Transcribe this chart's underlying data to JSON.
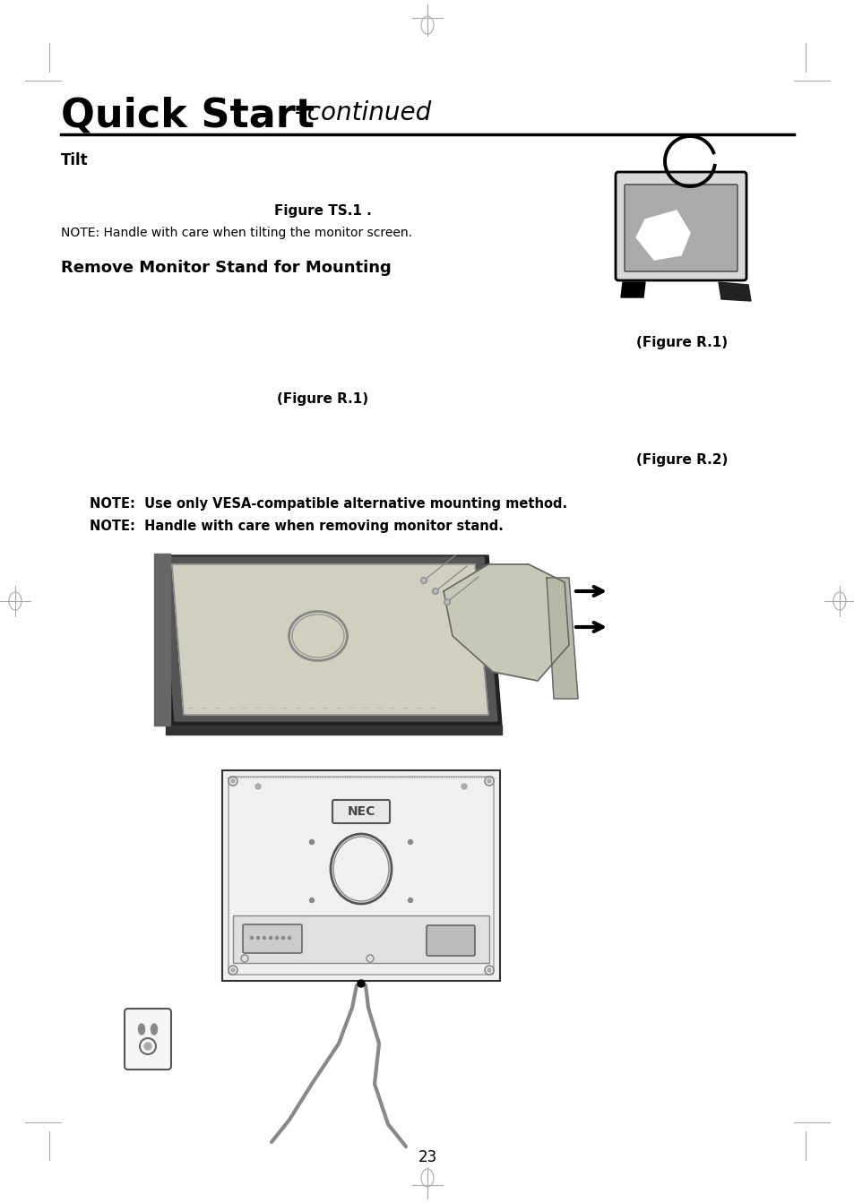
{
  "page_bg": "#ffffff",
  "title_bold": "Quick Start",
  "title_italic": " –continued",
  "section1_heading": "Tilt",
  "figure_ts1_label": "Figure TS.1 .",
  "note_tilt": "NOTE: Handle with care when tilting the monitor screen.",
  "section2_heading": "Remove Monitor Stand for Mounting",
  "figure_r1_label_right": "(Figure R.1)",
  "figure_r1_label_center": "(Figure R.1)",
  "figure_r2_label": "(Figure R.2)",
  "note_vesa": "NOTE:  Use only VESA-compatible alternative mounting method.",
  "note_handle": "NOTE:  Handle with care when removing monitor stand.",
  "page_number": "23",
  "mark_color": "#aaaaaa"
}
